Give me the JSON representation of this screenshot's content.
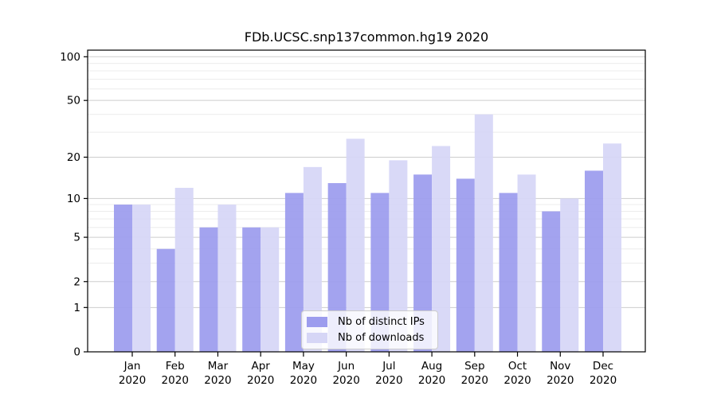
{
  "figure": {
    "title": "FDb.UCSC.snp137common.hg19 2020"
  },
  "chart_data": {
    "type": "bar",
    "title": "FDb.UCSC.snp137common.hg19 2020",
    "categories": [
      "Jan",
      "Feb",
      "Mar",
      "Apr",
      "May",
      "Jun",
      "Jul",
      "Aug",
      "Sep",
      "Oct",
      "Nov",
      "Dec"
    ],
    "category_year": "2020",
    "series": [
      {
        "name": "Nb of distinct IPs",
        "color": "#9c9cee",
        "values": [
          9,
          4,
          6,
          6,
          11,
          13,
          11,
          15,
          14,
          11,
          8,
          16
        ]
      },
      {
        "name": "Nb of downloads",
        "color": "#d6d6f6",
        "values": [
          9,
          12,
          9,
          6,
          17,
          27,
          19,
          24,
          40,
          15,
          10,
          25
        ]
      }
    ],
    "yscale": "log1p",
    "ylim": [
      0,
      111
    ],
    "y_ticks": [
      0,
      1,
      2,
      5,
      10,
      20,
      50,
      100
    ],
    "y_minor_gridlines": [
      3,
      4,
      6,
      7,
      8,
      9,
      30,
      40,
      60,
      70,
      80,
      90
    ],
    "xlabel": "",
    "ylabel": "",
    "grid": "on",
    "legend_position": "lower center (inside plot)"
  },
  "colors": {
    "background": "#ffffff",
    "axis": "#000000",
    "grid_major": "#cdcdcd",
    "grid_minor": "#ececec",
    "tick_label": "#000000"
  }
}
